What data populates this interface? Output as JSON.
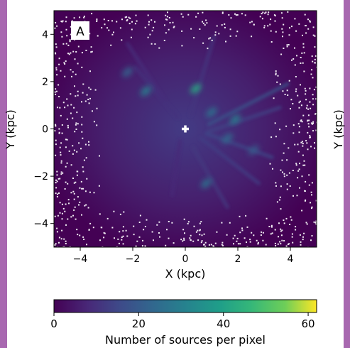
{
  "colors": {
    "border": "#a868b0",
    "plot_background": "#440154",
    "marker": "#ffffff"
  },
  "chart_data": {
    "type": "heatmap",
    "panel_label": "A",
    "xlabel": "X (kpc)",
    "ylabel": "Y (kpc)",
    "ylabel_secondary": "Y (kpc)",
    "xlim": [
      -5,
      5
    ],
    "ylim": [
      -5,
      5
    ],
    "xticks": [
      -4,
      -2,
      0,
      2,
      4
    ],
    "yticks": [
      -4,
      -2,
      0,
      2,
      4
    ],
    "colormap": "viridis",
    "colorbar": {
      "label": "Number of sources per pixel",
      "range": [
        0,
        62
      ],
      "ticks": [
        0,
        20,
        40,
        60
      ],
      "orientation": "horizontal",
      "placement": "bottom"
    },
    "sun_marker": {
      "x": 0,
      "y": 0,
      "shape": "plus"
    },
    "features": [
      {
        "type": "streak",
        "from": [
          0.9,
          0.2
        ],
        "to": [
          3.9,
          1.9
        ],
        "level": 18
      },
      {
        "type": "streak",
        "from": [
          0.9,
          -0.1
        ],
        "to": [
          3.6,
          0.9
        ],
        "level": 14
      },
      {
        "type": "streak",
        "from": [
          0.8,
          -0.2
        ],
        "to": [
          3.3,
          -1.2
        ],
        "level": 15
      },
      {
        "type": "streak",
        "from": [
          0.6,
          -0.4
        ],
        "to": [
          2.8,
          -2.3
        ],
        "level": 13
      },
      {
        "type": "streak",
        "from": [
          0.3,
          -0.8
        ],
        "to": [
          1.6,
          -3.3
        ],
        "level": 12
      },
      {
        "type": "streak",
        "from": [
          0.2,
          0.6
        ],
        "to": [
          1.1,
          3.9
        ],
        "level": 11
      },
      {
        "type": "streak",
        "from": [
          -0.3,
          0.5
        ],
        "to": [
          -1.9,
          2.6
        ],
        "level": 10
      },
      {
        "type": "streak",
        "from": [
          -0.8,
          1.2
        ],
        "to": [
          -2.2,
          3.6
        ],
        "level": 9
      },
      {
        "type": "streak",
        "from": [
          -0.2,
          -0.5
        ],
        "to": [
          -0.5,
          -2.8
        ],
        "level": 8
      },
      {
        "type": "clump",
        "x": -1.5,
        "y": 1.6,
        "level": 30
      },
      {
        "type": "clump",
        "x": -2.2,
        "y": 2.4,
        "level": 22
      },
      {
        "type": "clump",
        "x": 0.4,
        "y": 1.7,
        "level": 42
      },
      {
        "type": "clump",
        "x": 1.0,
        "y": 0.7,
        "level": 26
      },
      {
        "type": "clump",
        "x": 1.9,
        "y": 0.4,
        "level": 30
      },
      {
        "type": "clump",
        "x": 1.6,
        "y": -0.4,
        "level": 24
      },
      {
        "type": "clump",
        "x": 0.8,
        "y": -2.3,
        "level": 26
      },
      {
        "type": "clump",
        "x": 2.6,
        "y": -0.9,
        "level": 20
      }
    ]
  }
}
